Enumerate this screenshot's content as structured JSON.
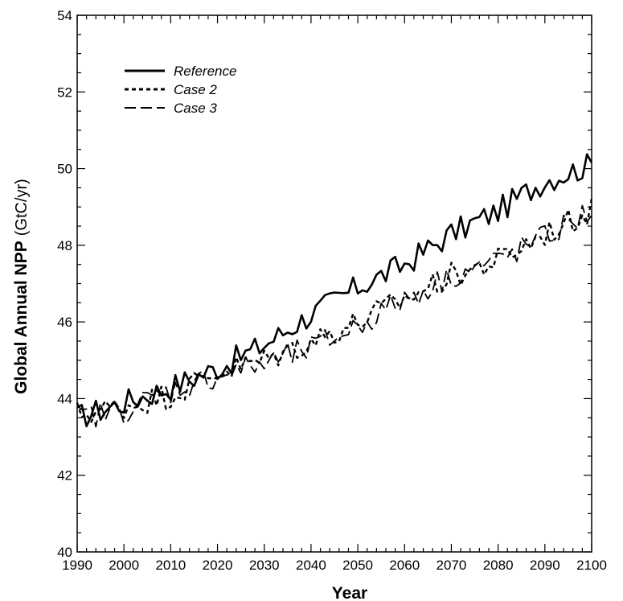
{
  "chart_data": {
    "type": "line",
    "xlabel": "Year",
    "ylabel": "Global Annual NPP",
    "ylabel_unit": "(GtC/yr)",
    "xlim": [
      1990,
      2100
    ],
    "ylim": [
      40,
      54
    ],
    "xticks": [
      1990,
      2000,
      2010,
      2020,
      2030,
      2040,
      2050,
      2060,
      2070,
      2080,
      2090,
      2100
    ],
    "yticks": [
      40,
      42,
      44,
      46,
      48,
      50,
      52,
      54
    ],
    "grid": false,
    "legend_position": "top-left",
    "x": [
      1990,
      2000,
      2010,
      2020,
      2030,
      2040,
      2050,
      2060,
      2070,
      2080,
      2090,
      2100
    ],
    "series": [
      {
        "name": "Reference",
        "style": "solid",
        "values": [
          43.5,
          43.9,
          44.3,
          44.8,
          45.4,
          46.2,
          46.9,
          47.5,
          48.3,
          48.9,
          49.7,
          50.1
        ]
      },
      {
        "name": "Case 2",
        "style": "dotted",
        "values": [
          43.6,
          43.8,
          44.1,
          44.7,
          45.0,
          45.5,
          46.0,
          46.6,
          47.2,
          47.6,
          48.3,
          48.9
        ]
      },
      {
        "name": "Case 3",
        "style": "dashed",
        "values": [
          43.5,
          43.7,
          44.2,
          44.6,
          44.9,
          45.3,
          45.9,
          46.6,
          47.2,
          47.6,
          48.2,
          48.9
        ]
      }
    ]
  }
}
